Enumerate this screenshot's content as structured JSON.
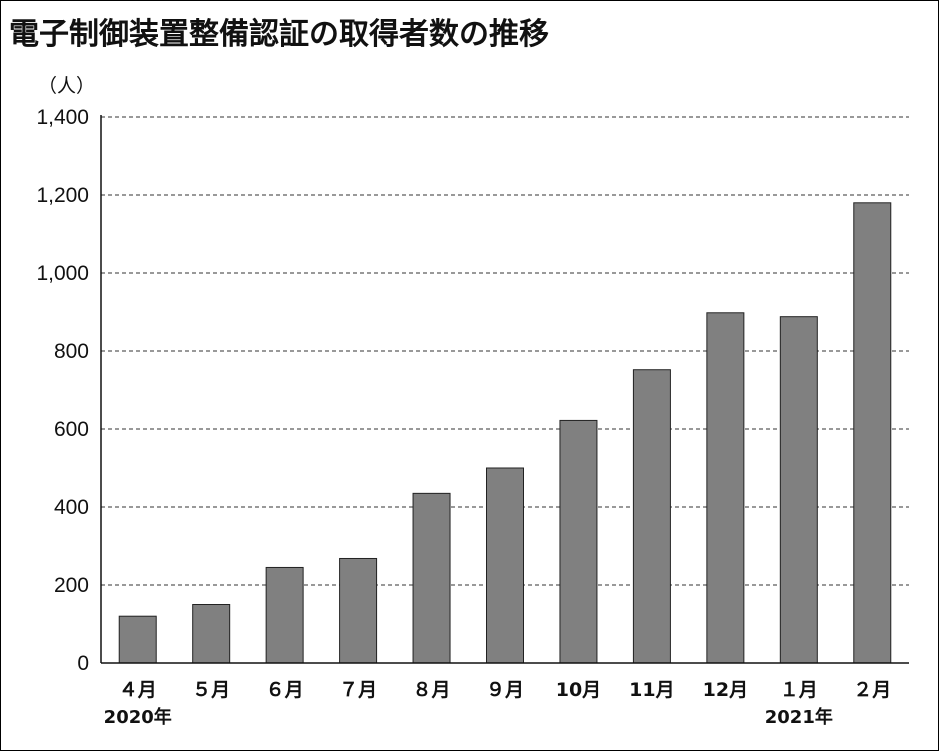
{
  "chart_data": {
    "type": "bar",
    "title": "電子制御装置整備認証の取得者数の推移",
    "unit_label": "（人）",
    "categories": [
      "４月",
      "５月",
      "６月",
      "７月",
      "８月",
      "９月",
      "10月",
      "11月",
      "12月",
      "１月",
      "２月"
    ],
    "year_labels": [
      {
        "category_index": 0,
        "text": "2020年"
      },
      {
        "category_index": 9,
        "text": "2021年"
      }
    ],
    "values": [
      120,
      150,
      245,
      268,
      435,
      500,
      622,
      752,
      898,
      888,
      1180
    ],
    "ylim": [
      0,
      1400
    ],
    "yticks": [
      0,
      200,
      400,
      600,
      800,
      1000,
      1200,
      1400
    ],
    "ytick_labels": [
      "0",
      "200",
      "400",
      "600",
      "800",
      "1,000",
      "1,200",
      "1,400"
    ],
    "grid": "horizontal-dashed",
    "bar_color": "#808080"
  }
}
